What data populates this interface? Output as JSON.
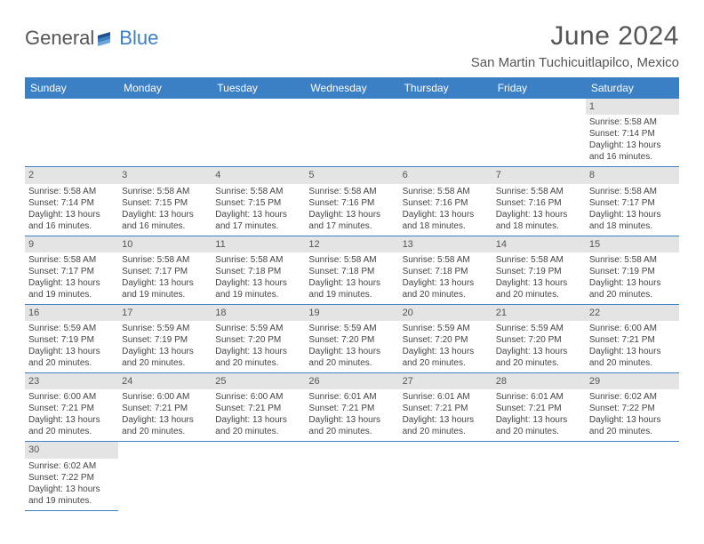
{
  "logo": {
    "word1": "General",
    "word2": "Blue",
    "brand_color": "#3b7fc4"
  },
  "header": {
    "month_year": "June 2024",
    "location": "San Martin Tuchicuitlapilco, Mexico"
  },
  "colors": {
    "header_bg": "#3b7fc4",
    "header_fg": "#ffffff",
    "daynum_bg": "#e4e4e4",
    "text": "#444444"
  },
  "day_headers": [
    "Sunday",
    "Monday",
    "Tuesday",
    "Wednesday",
    "Thursday",
    "Friday",
    "Saturday"
  ],
  "weeks": [
    [
      null,
      null,
      null,
      null,
      null,
      null,
      {
        "n": "1",
        "sr": "Sunrise: 5:58 AM",
        "ss": "Sunset: 7:14 PM",
        "d1": "Daylight: 13 hours",
        "d2": "and 16 minutes."
      }
    ],
    [
      {
        "n": "2",
        "sr": "Sunrise: 5:58 AM",
        "ss": "Sunset: 7:14 PM",
        "d1": "Daylight: 13 hours",
        "d2": "and 16 minutes."
      },
      {
        "n": "3",
        "sr": "Sunrise: 5:58 AM",
        "ss": "Sunset: 7:15 PM",
        "d1": "Daylight: 13 hours",
        "d2": "and 16 minutes."
      },
      {
        "n": "4",
        "sr": "Sunrise: 5:58 AM",
        "ss": "Sunset: 7:15 PM",
        "d1": "Daylight: 13 hours",
        "d2": "and 17 minutes."
      },
      {
        "n": "5",
        "sr": "Sunrise: 5:58 AM",
        "ss": "Sunset: 7:16 PM",
        "d1": "Daylight: 13 hours",
        "d2": "and 17 minutes."
      },
      {
        "n": "6",
        "sr": "Sunrise: 5:58 AM",
        "ss": "Sunset: 7:16 PM",
        "d1": "Daylight: 13 hours",
        "d2": "and 18 minutes."
      },
      {
        "n": "7",
        "sr": "Sunrise: 5:58 AM",
        "ss": "Sunset: 7:16 PM",
        "d1": "Daylight: 13 hours",
        "d2": "and 18 minutes."
      },
      {
        "n": "8",
        "sr": "Sunrise: 5:58 AM",
        "ss": "Sunset: 7:17 PM",
        "d1": "Daylight: 13 hours",
        "d2": "and 18 minutes."
      }
    ],
    [
      {
        "n": "9",
        "sr": "Sunrise: 5:58 AM",
        "ss": "Sunset: 7:17 PM",
        "d1": "Daylight: 13 hours",
        "d2": "and 19 minutes."
      },
      {
        "n": "10",
        "sr": "Sunrise: 5:58 AM",
        "ss": "Sunset: 7:17 PM",
        "d1": "Daylight: 13 hours",
        "d2": "and 19 minutes."
      },
      {
        "n": "11",
        "sr": "Sunrise: 5:58 AM",
        "ss": "Sunset: 7:18 PM",
        "d1": "Daylight: 13 hours",
        "d2": "and 19 minutes."
      },
      {
        "n": "12",
        "sr": "Sunrise: 5:58 AM",
        "ss": "Sunset: 7:18 PM",
        "d1": "Daylight: 13 hours",
        "d2": "and 19 minutes."
      },
      {
        "n": "13",
        "sr": "Sunrise: 5:58 AM",
        "ss": "Sunset: 7:18 PM",
        "d1": "Daylight: 13 hours",
        "d2": "and 20 minutes."
      },
      {
        "n": "14",
        "sr": "Sunrise: 5:58 AM",
        "ss": "Sunset: 7:19 PM",
        "d1": "Daylight: 13 hours",
        "d2": "and 20 minutes."
      },
      {
        "n": "15",
        "sr": "Sunrise: 5:58 AM",
        "ss": "Sunset: 7:19 PM",
        "d1": "Daylight: 13 hours",
        "d2": "and 20 minutes."
      }
    ],
    [
      {
        "n": "16",
        "sr": "Sunrise: 5:59 AM",
        "ss": "Sunset: 7:19 PM",
        "d1": "Daylight: 13 hours",
        "d2": "and 20 minutes."
      },
      {
        "n": "17",
        "sr": "Sunrise: 5:59 AM",
        "ss": "Sunset: 7:19 PM",
        "d1": "Daylight: 13 hours",
        "d2": "and 20 minutes."
      },
      {
        "n": "18",
        "sr": "Sunrise: 5:59 AM",
        "ss": "Sunset: 7:20 PM",
        "d1": "Daylight: 13 hours",
        "d2": "and 20 minutes."
      },
      {
        "n": "19",
        "sr": "Sunrise: 5:59 AM",
        "ss": "Sunset: 7:20 PM",
        "d1": "Daylight: 13 hours",
        "d2": "and 20 minutes."
      },
      {
        "n": "20",
        "sr": "Sunrise: 5:59 AM",
        "ss": "Sunset: 7:20 PM",
        "d1": "Daylight: 13 hours",
        "d2": "and 20 minutes."
      },
      {
        "n": "21",
        "sr": "Sunrise: 5:59 AM",
        "ss": "Sunset: 7:20 PM",
        "d1": "Daylight: 13 hours",
        "d2": "and 20 minutes."
      },
      {
        "n": "22",
        "sr": "Sunrise: 6:00 AM",
        "ss": "Sunset: 7:21 PM",
        "d1": "Daylight: 13 hours",
        "d2": "and 20 minutes."
      }
    ],
    [
      {
        "n": "23",
        "sr": "Sunrise: 6:00 AM",
        "ss": "Sunset: 7:21 PM",
        "d1": "Daylight: 13 hours",
        "d2": "and 20 minutes."
      },
      {
        "n": "24",
        "sr": "Sunrise: 6:00 AM",
        "ss": "Sunset: 7:21 PM",
        "d1": "Daylight: 13 hours",
        "d2": "and 20 minutes."
      },
      {
        "n": "25",
        "sr": "Sunrise: 6:00 AM",
        "ss": "Sunset: 7:21 PM",
        "d1": "Daylight: 13 hours",
        "d2": "and 20 minutes."
      },
      {
        "n": "26",
        "sr": "Sunrise: 6:01 AM",
        "ss": "Sunset: 7:21 PM",
        "d1": "Daylight: 13 hours",
        "d2": "and 20 minutes."
      },
      {
        "n": "27",
        "sr": "Sunrise: 6:01 AM",
        "ss": "Sunset: 7:21 PM",
        "d1": "Daylight: 13 hours",
        "d2": "and 20 minutes."
      },
      {
        "n": "28",
        "sr": "Sunrise: 6:01 AM",
        "ss": "Sunset: 7:21 PM",
        "d1": "Daylight: 13 hours",
        "d2": "and 20 minutes."
      },
      {
        "n": "29",
        "sr": "Sunrise: 6:02 AM",
        "ss": "Sunset: 7:22 PM",
        "d1": "Daylight: 13 hours",
        "d2": "and 20 minutes."
      }
    ],
    [
      {
        "n": "30",
        "sr": "Sunrise: 6:02 AM",
        "ss": "Sunset: 7:22 PM",
        "d1": "Daylight: 13 hours",
        "d2": "and 19 minutes."
      },
      null,
      null,
      null,
      null,
      null,
      null
    ]
  ]
}
